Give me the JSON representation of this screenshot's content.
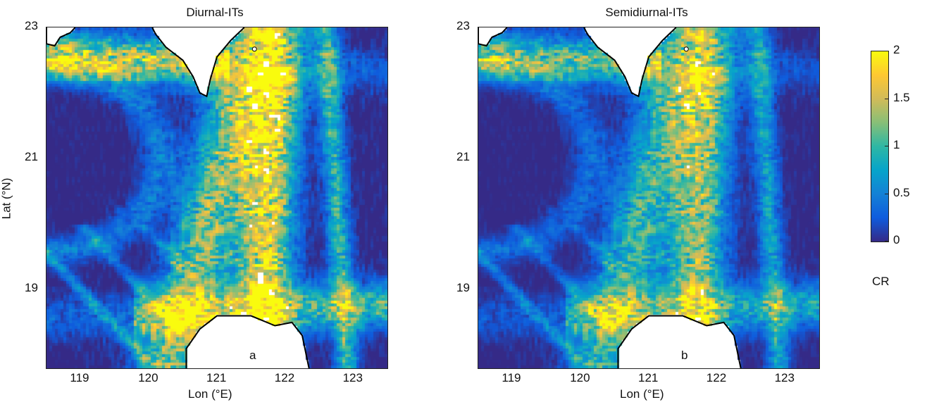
{
  "figure": {
    "colorbar": {
      "ticks": [
        "2",
        "1.5",
        "1",
        "0.5",
        "0"
      ],
      "tick_values": [
        2,
        1.5,
        1,
        0.5,
        0
      ],
      "label": "CR",
      "colormap": "parula",
      "stops": [
        "#352a87",
        "#0f5cdd",
        "#1481d6",
        "#06a4ca",
        "#2eb7a4",
        "#87bf77",
        "#d1bb59",
        "#fec832",
        "#f9fb0e"
      ]
    },
    "land_color": "#ffffff",
    "coast_color": "#000000"
  },
  "chart_data": [
    {
      "type": "heatmap",
      "title": "Diurnal-ITs",
      "panel_label": "a",
      "xlabel": "Lon (°E)",
      "ylabel": "Lat (°N)",
      "xlim": [
        118.5,
        123.5
      ],
      "ylim": [
        17.8,
        23
      ],
      "xticks": [
        "119",
        "120",
        "121",
        "122",
        "123"
      ],
      "xtick_values": [
        119,
        120,
        121,
        122,
        123
      ],
      "yticks": [
        "23",
        "21",
        "19"
      ],
      "ytick_values": [
        23,
        21,
        19
      ],
      "clim": [
        0,
        2
      ],
      "variable": "CR"
    },
    {
      "type": "heatmap",
      "title": "Semidiurnal-ITs",
      "panel_label": "b",
      "xlabel": "Lon (°E)",
      "ylabel": "",
      "xlim": [
        118.5,
        123.5
      ],
      "ylim": [
        17.8,
        23
      ],
      "xticks": [
        "119",
        "120",
        "121",
        "122",
        "123"
      ],
      "xtick_values": [
        119,
        120,
        121,
        122,
        123
      ],
      "yticks": [
        "23",
        "21",
        "19"
      ],
      "ytick_values": [
        23,
        21,
        19
      ],
      "clim": [
        0,
        2
      ],
      "variable": "CR"
    }
  ]
}
